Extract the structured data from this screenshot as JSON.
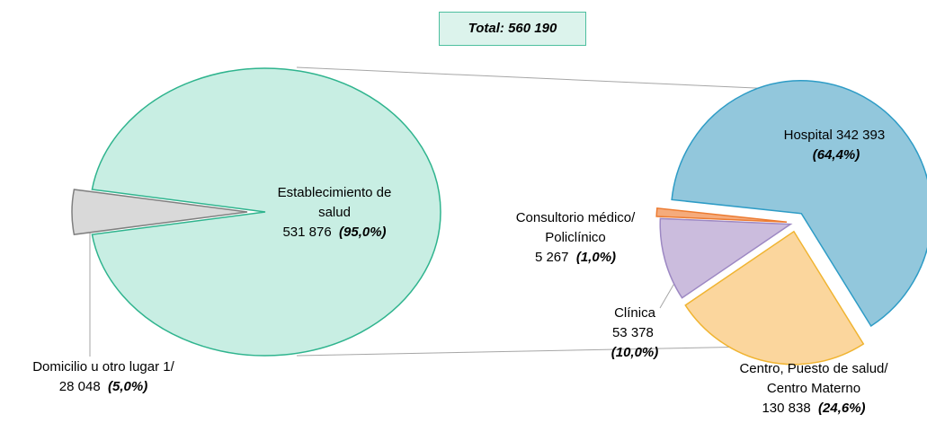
{
  "chart_data": {
    "type": "pie_of_pie",
    "title": "Total: 560 190",
    "pies": [
      {
        "categories": [
          "Establecimiento de salud",
          "Domicilio u otro lugar 1/"
        ],
        "values": [
          531876,
          28048
        ],
        "value_labels": [
          "531 876",
          "28 048"
        ],
        "percents": [
          95.0,
          5.0
        ],
        "percent_labels": [
          "(95,0%)",
          "(5,0%)"
        ],
        "colors": [
          "#c8eee3",
          "#d9d9d9"
        ]
      },
      {
        "categories": [
          "Hospital",
          "Centro, Puesto de salud/ Centro Materno",
          "Clínica",
          "Consultorio médico/ Policlínico"
        ],
        "values": [
          342393,
          130838,
          53378,
          5267
        ],
        "value_labels": [
          "342 393",
          "130 838",
          "53 378",
          "5 267"
        ],
        "percents": [
          64.4,
          24.6,
          10.0,
          1.0
        ],
        "percent_labels": [
          "(64,4%)",
          "(24,6%)",
          "(10,0%)",
          "(1,0%)"
        ],
        "colors": [
          "#92c7dc",
          "#fbd69d",
          "#cbbcdd",
          "#f5ab7c"
        ]
      }
    ]
  }
}
